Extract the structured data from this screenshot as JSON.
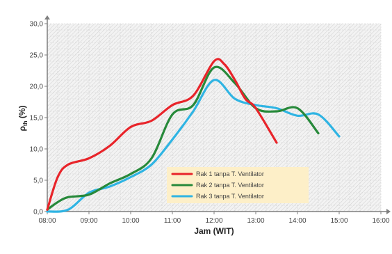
{
  "chart_data": {
    "type": "line",
    "xlabel": "Jam (WIT)",
    "ylabel_main": "ρ",
    "ylabel_sub": "th",
    "ylabel_suffix": " (%)",
    "ylim": [
      0,
      30
    ],
    "xlim": [
      8,
      16
    ],
    "x_ticks": [
      8,
      9,
      10,
      11,
      12,
      13,
      14,
      15,
      16
    ],
    "x_tick_labels": [
      "08:00",
      "09:00",
      "10:00",
      "11:00",
      "12:00",
      "13:00",
      "14:00",
      "15:00",
      "16:00"
    ],
    "y_ticks": [
      0,
      5,
      10,
      15,
      20,
      25,
      30
    ],
    "y_tick_labels": [
      "0,0",
      "5,0",
      "10,0",
      "15,0",
      "20,0",
      "25,0",
      "30,0"
    ],
    "grid": true,
    "legend_position": "bottom-center",
    "series": [
      {
        "name": "Rak 1 tanpa T. Ventilator",
        "color": "#e8242a",
        "x": [
          8.0,
          8.25,
          8.5,
          9.0,
          9.5,
          10.0,
          10.5,
          11.0,
          11.5,
          12.0,
          12.25,
          12.5,
          12.75,
          13.0,
          13.5
        ],
        "y": [
          0.3,
          5.5,
          7.5,
          8.5,
          10.5,
          13.5,
          14.5,
          17.0,
          18.5,
          24.0,
          23.5,
          21.0,
          18.0,
          16.5,
          11.0
        ]
      },
      {
        "name": "Rak 2 tanpa T. Ventilator",
        "color": "#27893a",
        "x": [
          8.0,
          8.25,
          8.5,
          9.0,
          9.5,
          10.0,
          10.5,
          11.0,
          11.5,
          12.0,
          12.5,
          13.0,
          13.5,
          14.0,
          14.5
        ],
        "y": [
          0.3,
          1.5,
          2.3,
          2.7,
          4.5,
          6.0,
          8.5,
          15.5,
          17.0,
          23.0,
          20.5,
          16.5,
          16.0,
          16.5,
          12.5
        ]
      },
      {
        "name": "Rak 3 tanpa T. Ventilator",
        "color": "#2fb4e3",
        "x": [
          8.0,
          8.5,
          9.0,
          9.5,
          10.0,
          10.5,
          11.0,
          11.5,
          12.0,
          12.5,
          13.0,
          13.5,
          14.0,
          14.5,
          15.0
        ],
        "y": [
          0.0,
          0.3,
          3.0,
          4.0,
          5.5,
          7.5,
          11.5,
          16.0,
          21.0,
          18.0,
          17.0,
          16.5,
          15.3,
          15.5,
          12.0
        ]
      }
    ]
  }
}
